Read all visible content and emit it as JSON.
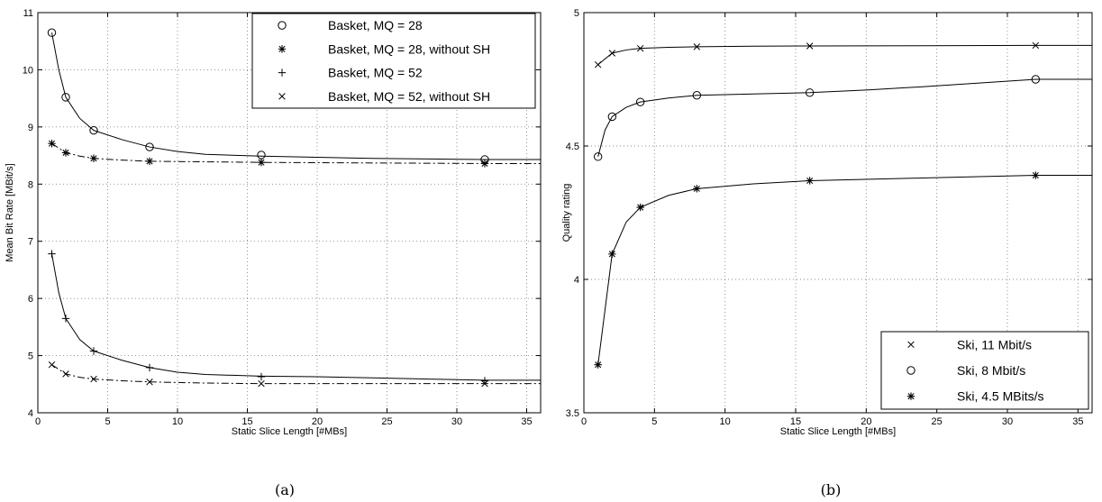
{
  "chart_data": [
    {
      "id": "a",
      "type": "line",
      "caption": "(a)",
      "xlabel": "Static Slice Length [#MBs]",
      "ylabel": "Mean Bit Rate [MBit/s]",
      "xlim": [
        0,
        36
      ],
      "ylim": [
        4,
        11
      ],
      "xticks": [
        0,
        5,
        10,
        15,
        20,
        25,
        30,
        35
      ],
      "yticks": [
        4,
        5,
        6,
        7,
        8,
        9,
        10,
        11
      ],
      "grid": true,
      "legend_position": "top-right",
      "series": [
        {
          "name": "Basket, MQ = 28",
          "marker": "circle",
          "line": "solid",
          "x": [
            1,
            2,
            4,
            8,
            16,
            32
          ],
          "y": [
            10.65,
            9.52,
            8.94,
            8.65,
            8.51,
            8.43
          ],
          "curve_x": [
            1,
            1.5,
            2,
            3,
            4,
            6,
            8,
            10,
            12,
            16,
            20,
            24,
            28,
            32,
            36
          ],
          "curve_y": [
            10.65,
            10.0,
            9.52,
            9.15,
            8.94,
            8.78,
            8.65,
            8.57,
            8.52,
            8.49,
            8.47,
            8.45,
            8.44,
            8.43,
            8.43
          ]
        },
        {
          "name": "Basket, MQ = 28, without SH",
          "marker": "star",
          "line": "dashdot",
          "x": [
            1,
            2,
            4,
            8,
            16,
            32
          ],
          "y": [
            8.71,
            8.55,
            8.45,
            8.4,
            8.38,
            8.36
          ],
          "curve_x": [
            1,
            2,
            3,
            4,
            6,
            8,
            12,
            16,
            24,
            32,
            36
          ],
          "curve_y": [
            8.71,
            8.55,
            8.49,
            8.45,
            8.42,
            8.4,
            8.39,
            8.38,
            8.37,
            8.36,
            8.36
          ]
        },
        {
          "name": "Basket, MQ = 52",
          "marker": "plus",
          "line": "solid",
          "x": [
            1,
            2,
            4,
            8,
            16,
            32
          ],
          "y": [
            6.78,
            5.65,
            5.08,
            4.79,
            4.63,
            4.56
          ],
          "curve_x": [
            1,
            1.5,
            2,
            3,
            4,
            6,
            8,
            10,
            12,
            16,
            20,
            24,
            28,
            32,
            36
          ],
          "curve_y": [
            6.78,
            6.1,
            5.65,
            5.28,
            5.08,
            4.92,
            4.79,
            4.71,
            4.67,
            4.64,
            4.63,
            4.61,
            4.59,
            4.57,
            4.57
          ]
        },
        {
          "name": "Basket, MQ = 52, without SH",
          "marker": "x",
          "line": "dashdot",
          "x": [
            1,
            2,
            4,
            8,
            16,
            32
          ],
          "y": [
            4.84,
            4.68,
            4.59,
            4.54,
            4.51,
            4.51
          ],
          "curve_x": [
            1,
            2,
            3,
            4,
            6,
            8,
            12,
            16,
            24,
            32,
            36
          ],
          "curve_y": [
            4.84,
            4.68,
            4.62,
            4.59,
            4.56,
            4.54,
            4.52,
            4.51,
            4.51,
            4.51,
            4.51
          ]
        }
      ]
    },
    {
      "id": "b",
      "type": "line",
      "caption": "(b)",
      "xlabel": "Static Slice Length [#MBs]",
      "ylabel": "Quality rating",
      "xlim": [
        0,
        36
      ],
      "ylim": [
        3.5,
        5
      ],
      "xticks": [
        0,
        5,
        10,
        15,
        20,
        25,
        30,
        35
      ],
      "yticks": [
        3.5,
        4,
        4.5,
        5
      ],
      "grid": true,
      "legend_position": "bottom-right",
      "series": [
        {
          "name": "Ski, 11 Mbit/s",
          "marker": "x",
          "line": "solid",
          "x": [
            1,
            2,
            4,
            8,
            16,
            32
          ],
          "y": [
            4.805,
            4.848,
            4.866,
            4.872,
            4.875,
            4.877
          ],
          "curve_x": [
            1,
            2,
            3,
            4,
            6,
            8,
            12,
            16,
            24,
            32,
            36
          ],
          "curve_y": [
            4.805,
            4.848,
            4.86,
            4.866,
            4.87,
            4.872,
            4.874,
            4.875,
            4.876,
            4.877,
            4.877
          ]
        },
        {
          "name": "Ski, 8 Mbit/s",
          "marker": "circle",
          "line": "solid",
          "x": [
            1,
            2,
            4,
            8,
            16,
            32
          ],
          "y": [
            4.46,
            4.61,
            4.665,
            4.69,
            4.7,
            4.75
          ],
          "curve_x": [
            1,
            1.5,
            2,
            3,
            4,
            6,
            8,
            12,
            16,
            20,
            24,
            28,
            32,
            36
          ],
          "curve_y": [
            4.46,
            4.56,
            4.61,
            4.645,
            4.665,
            4.68,
            4.69,
            4.695,
            4.7,
            4.71,
            4.722,
            4.736,
            4.75,
            4.75
          ]
        },
        {
          "name": "Ski, 4.5 MBits/s",
          "marker": "star",
          "line": "solid",
          "x": [
            1,
            2,
            4,
            8,
            16,
            32
          ],
          "y": [
            3.68,
            4.095,
            4.27,
            4.34,
            4.37,
            4.39
          ],
          "curve_x": [
            1,
            2,
            3,
            4,
            6,
            8,
            12,
            16,
            24,
            32,
            36
          ],
          "curve_y": [
            3.68,
            4.095,
            4.215,
            4.27,
            4.315,
            4.34,
            4.358,
            4.37,
            4.38,
            4.39,
            4.39
          ]
        }
      ]
    }
  ]
}
